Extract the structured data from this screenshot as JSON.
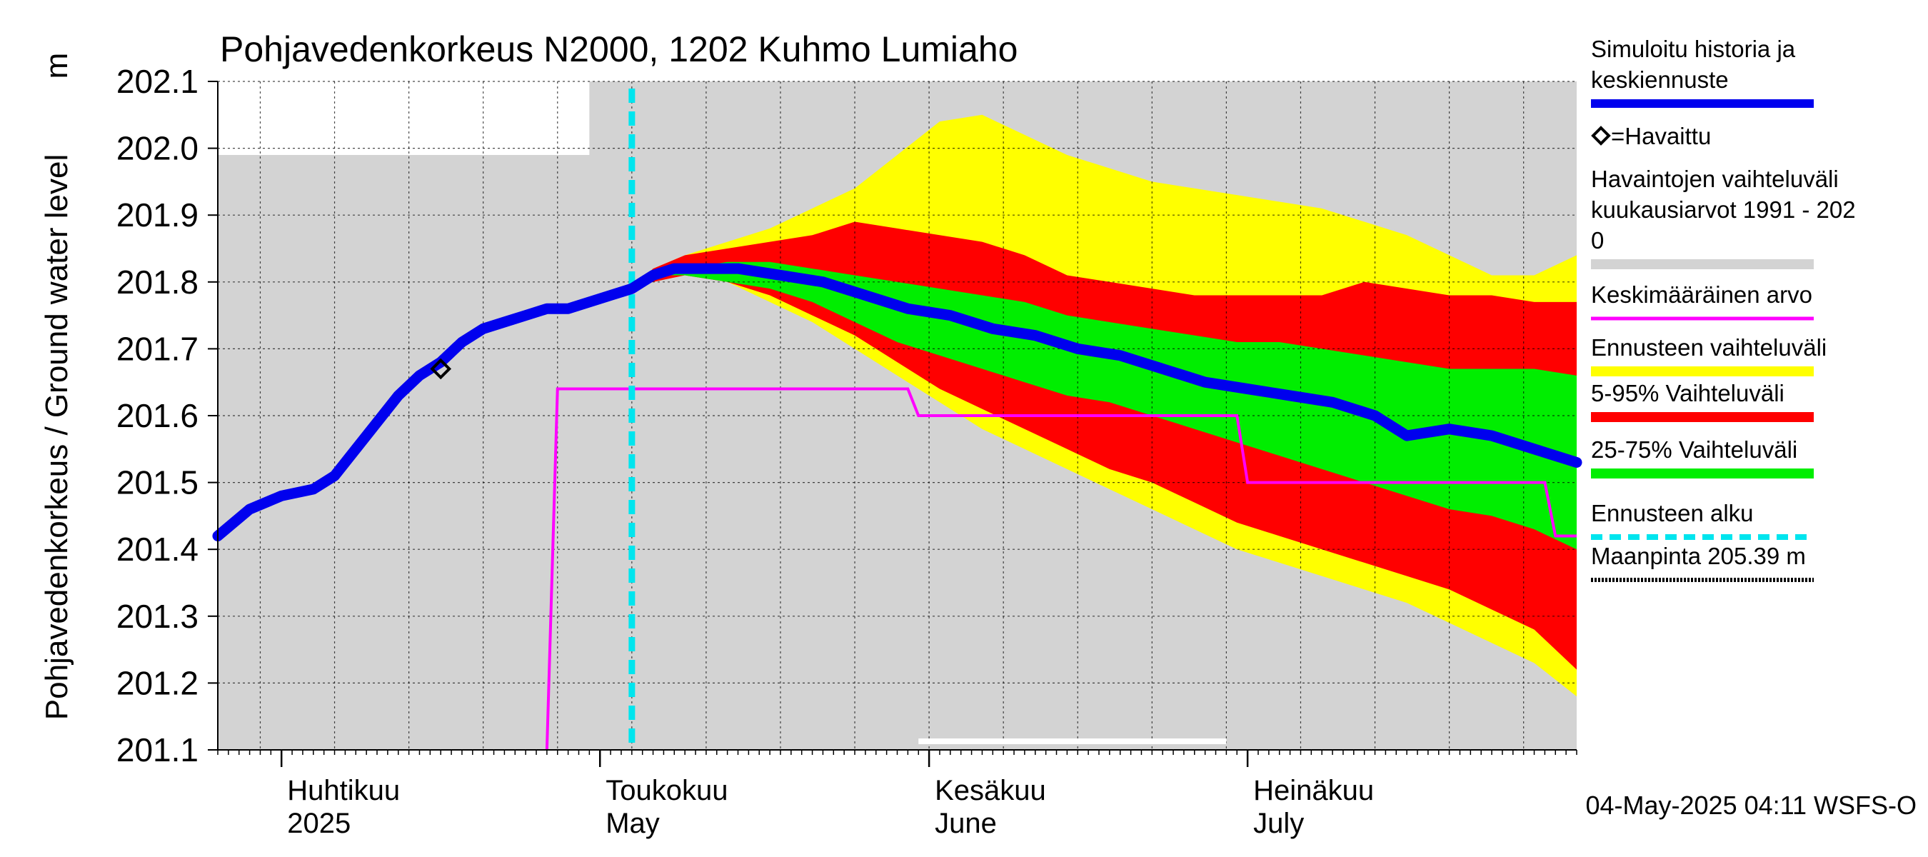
{
  "chart_data": {
    "type": "area",
    "title": "Pohjavedenkorkeus N2000, 1202 Kuhmo Lumiaho",
    "ylabel": "Pohjavedenkorkeus / Ground water level",
    "yunit": "m",
    "ylim": [
      201.1,
      202.1
    ],
    "yticks": [
      "201.1",
      "201.2",
      "201.3",
      "201.4",
      "201.5",
      "201.6",
      "201.7",
      "201.8",
      "201.9",
      "202.0",
      "202.1"
    ],
    "xlim": [
      "2025-03-26",
      "2025-08-01"
    ],
    "x_labels": [
      {
        "date": "2025-04-01",
        "line1": "Huhtikuu",
        "line2": "2025"
      },
      {
        "date": "2025-05-01",
        "line1": "Toukokuu",
        "line2": "May"
      },
      {
        "date": "2025-06-01",
        "line1": "Kesäkuu",
        "line2": "June"
      },
      {
        "date": "2025-07-01",
        "line1": "Heinäkuu",
        "line2": "July"
      }
    ],
    "grid": true,
    "forecast_start": "2025-05-04",
    "observed": [
      {
        "date": "2025-04-16",
        "value": 201.67
      }
    ],
    "simulated": {
      "dates": [
        "2025-03-26",
        "2025-03-29",
        "2025-04-01",
        "2025-04-04",
        "2025-04-06",
        "2025-04-08",
        "2025-04-10",
        "2025-04-12",
        "2025-04-14",
        "2025-04-16",
        "2025-04-18",
        "2025-04-20",
        "2025-04-22",
        "2025-04-24",
        "2025-04-26",
        "2025-04-28",
        "2025-04-30",
        "2025-05-02",
        "2025-05-04",
        "2025-05-06",
        "2025-05-08",
        "2025-05-10",
        "2025-05-14",
        "2025-05-18",
        "2025-05-22",
        "2025-05-26",
        "2025-05-30",
        "2025-06-03",
        "2025-06-07",
        "2025-06-11",
        "2025-06-15",
        "2025-06-19",
        "2025-06-23",
        "2025-06-27",
        "2025-07-01",
        "2025-07-05",
        "2025-07-09",
        "2025-07-13",
        "2025-07-16",
        "2025-07-20",
        "2025-07-24",
        "2025-07-28",
        "2025-08-01"
      ],
      "values": [
        201.42,
        201.46,
        201.48,
        201.49,
        201.51,
        201.55,
        201.59,
        201.63,
        201.66,
        201.68,
        201.71,
        201.73,
        201.74,
        201.75,
        201.76,
        201.76,
        201.77,
        201.78,
        201.79,
        201.81,
        201.82,
        201.82,
        201.82,
        201.81,
        201.8,
        201.78,
        201.76,
        201.75,
        201.73,
        201.72,
        201.7,
        201.69,
        201.67,
        201.65,
        201.64,
        201.63,
        201.62,
        201.6,
        201.57,
        201.58,
        201.57,
        201.55,
        201.53
      ]
    },
    "mean_value": {
      "dates": [
        "2025-04-26",
        "2025-04-27",
        "2025-05-30",
        "2025-05-31",
        "2025-06-30",
        "2025-07-01",
        "2025-07-29",
        "2025-07-30",
        "2025-08-01"
      ],
      "values": [
        201.1,
        201.64,
        201.64,
        201.6,
        201.6,
        201.5,
        201.5,
        201.42,
        201.42
      ]
    },
    "historical_range_note": "Havaintojen vaihteluväli kuukausiarvot 1991 - 2020",
    "bands_dates": [
      "2025-05-04",
      "2025-05-06",
      "2025-05-09",
      "2025-05-13",
      "2025-05-17",
      "2025-05-21",
      "2025-05-25",
      "2025-05-29",
      "2025-06-02",
      "2025-06-06",
      "2025-06-10",
      "2025-06-14",
      "2025-06-18",
      "2025-06-22",
      "2025-06-26",
      "2025-06-30",
      "2025-07-04",
      "2025-07-08",
      "2025-07-12",
      "2025-07-16",
      "2025-07-20",
      "2025-07-24",
      "2025-07-28",
      "2025-08-01"
    ],
    "bands": [
      {
        "name": "Ennusteen vaihteluväli",
        "color": "#ffff00",
        "upper": [
          201.79,
          201.82,
          201.84,
          201.86,
          201.88,
          201.91,
          201.94,
          201.99,
          202.04,
          202.05,
          202.02,
          201.99,
          201.97,
          201.95,
          201.94,
          201.93,
          201.92,
          201.91,
          201.89,
          201.87,
          201.84,
          201.81,
          201.81,
          201.84
        ],
        "lower": [
          201.79,
          201.8,
          201.81,
          201.8,
          201.77,
          201.74,
          201.7,
          201.66,
          201.62,
          201.58,
          201.55,
          201.52,
          201.49,
          201.46,
          201.43,
          201.4,
          201.38,
          201.36,
          201.34,
          201.32,
          201.29,
          201.26,
          201.23,
          201.18
        ]
      },
      {
        "name": "5-95% Vaihteluväli",
        "color": "#ff0000",
        "upper": [
          201.79,
          201.82,
          201.84,
          201.85,
          201.86,
          201.87,
          201.89,
          201.88,
          201.87,
          201.86,
          201.84,
          201.81,
          201.8,
          201.79,
          201.78,
          201.78,
          201.78,
          201.78,
          201.8,
          201.79,
          201.78,
          201.78,
          201.77,
          201.77
        ],
        "lower": [
          201.79,
          201.8,
          201.81,
          201.8,
          201.78,
          201.75,
          201.72,
          201.68,
          201.64,
          201.61,
          201.58,
          201.55,
          201.52,
          201.5,
          201.47,
          201.44,
          201.42,
          201.4,
          201.38,
          201.36,
          201.34,
          201.31,
          201.28,
          201.22
        ]
      },
      {
        "name": "25-75% Vaihteluväli",
        "color": "#00ee00",
        "upper": [
          201.79,
          201.81,
          201.82,
          201.83,
          201.83,
          201.82,
          201.81,
          201.8,
          201.79,
          201.78,
          201.77,
          201.75,
          201.74,
          201.73,
          201.72,
          201.71,
          201.71,
          201.7,
          201.69,
          201.68,
          201.67,
          201.67,
          201.67,
          201.66
        ],
        "lower": [
          201.79,
          201.81,
          201.81,
          201.8,
          201.79,
          201.77,
          201.74,
          201.71,
          201.69,
          201.67,
          201.65,
          201.63,
          201.62,
          201.6,
          201.58,
          201.56,
          201.54,
          201.52,
          201.5,
          201.48,
          201.46,
          201.45,
          201.43,
          201.4
        ]
      }
    ],
    "legend": {
      "position": "right",
      "items": [
        {
          "key": "sim",
          "lines": [
            "Simuloitu historia ja",
            "keskiennuste"
          ],
          "color": "#0000ee",
          "style": "thick"
        },
        {
          "key": "obs",
          "lines": [
            "=Havaittu"
          ],
          "color": "#000000",
          "style": "diamond"
        },
        {
          "key": "hist",
          "lines": [
            "Havaintojen vaihteluväli",
            " kuukausiarvot 1991 - 202",
            "0"
          ],
          "color": "#d3d3d3",
          "style": "band"
        },
        {
          "key": "mean",
          "lines": [
            "Keskimääräinen arvo"
          ],
          "color": "#ff00ff",
          "style": "thin"
        },
        {
          "key": "ens",
          "lines": [
            "Ennusteen vaihteluväli"
          ],
          "color": "#ffff00",
          "style": "band"
        },
        {
          "key": "p595",
          "lines": [
            "5-95% Vaihteluväli"
          ],
          "color": "#ff0000",
          "style": "band"
        },
        {
          "key": "p2575",
          "lines": [
            "25-75% Vaihteluväli"
          ],
          "color": "#00ee00",
          "style": "band"
        },
        {
          "key": "fstart",
          "lines": [
            "Ennusteen alku"
          ],
          "color": "#00e5ee",
          "style": "dashed"
        },
        {
          "key": "ground",
          "lines": [
            "Maanpinta 205.39 m"
          ],
          "color": "#000000",
          "style": "dotted"
        }
      ]
    },
    "footer": "04-May-2025 04:11 WSFS-O"
  }
}
